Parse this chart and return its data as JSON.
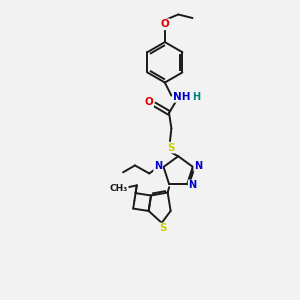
{
  "background_color": "#f2f2f2",
  "bond_color": "#1a1a1a",
  "atom_colors": {
    "N": "#0000cc",
    "O": "#dd0000",
    "S": "#cccc00",
    "H": "#008080",
    "C": "#1a1a1a"
  },
  "figsize": [
    3.0,
    3.0
  ],
  "dpi": 100,
  "lw": 1.4
}
